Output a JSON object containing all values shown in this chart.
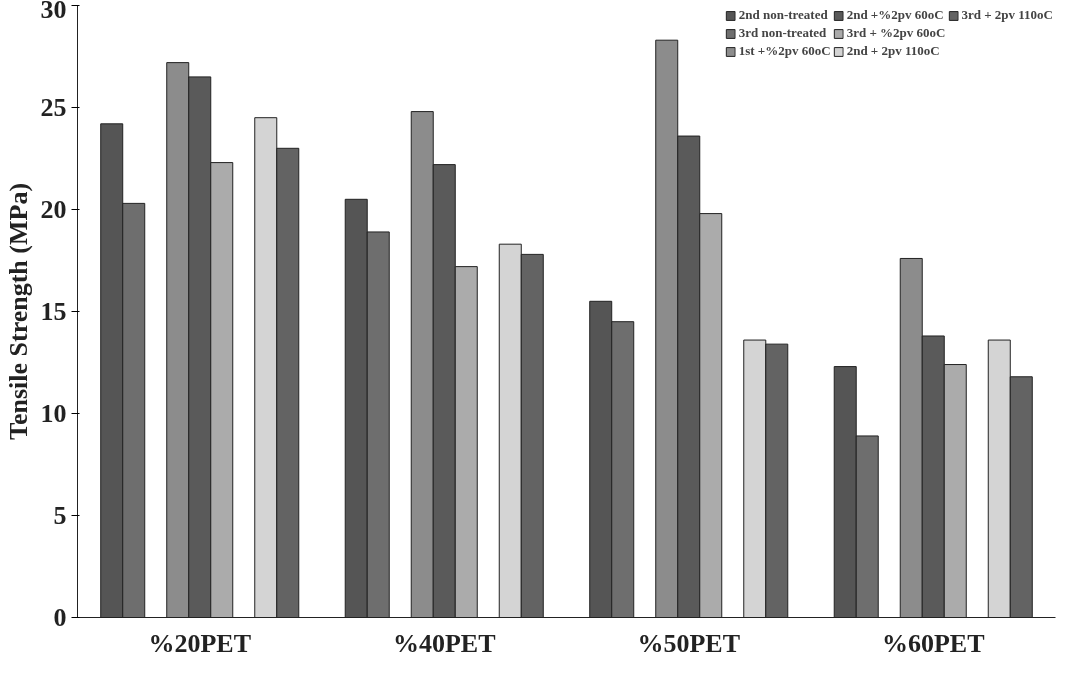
{
  "chart_data": {
    "type": "bar",
    "ylabel": "Tensile Strength (MPa)",
    "categories": [
      "%20PET",
      "%40PET",
      "%50PET",
      "%60PET"
    ],
    "series": [
      {
        "name": "2nd non-treated",
        "color": "#555555",
        "values": [
          24.2,
          20.5,
          15.5,
          12.3
        ]
      },
      {
        "name": "3rd non-treated",
        "color": "#6e6e6e",
        "values": [
          20.3,
          18.9,
          14.5,
          8.9
        ]
      },
      {
        "values": [
          null,
          null,
          null,
          null
        ]
      },
      {
        "name": "1st +%2pv 60oC",
        "color": "#8c8c8c",
        "values": [
          27.2,
          24.8,
          28.3,
          17.6
        ]
      },
      {
        "name": "2nd +%2pv 60oC",
        "color": "#5a5a5a",
        "values": [
          26.5,
          22.2,
          23.6,
          13.8
        ]
      },
      {
        "name": "3rd + %2pv 60oC",
        "color": "#ababab",
        "values": [
          22.3,
          17.2,
          19.8,
          12.4
        ]
      },
      {
        "values": [
          null,
          null,
          null,
          null
        ]
      },
      {
        "name": "2nd + 2pv 110oC",
        "color": "#d4d4d4",
        "values": [
          24.5,
          18.3,
          13.6,
          13.6
        ]
      },
      {
        "name": "3rd + 2pv 110oC",
        "color": "#636363",
        "values": [
          23.0,
          17.8,
          13.4,
          11.8
        ]
      }
    ],
    "ylim": [
      0,
      30
    ],
    "yticks": [
      0,
      5,
      10,
      15,
      20,
      25,
      30
    ],
    "grid": false,
    "legend": "top right"
  }
}
